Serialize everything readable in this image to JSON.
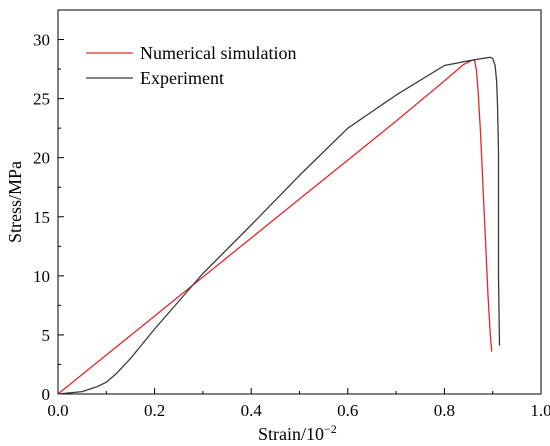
{
  "chart_data": {
    "type": "line",
    "title": "",
    "xlabel": "Strain/10",
    "xlabel_superscript": "−2",
    "ylabel": "Stress/MPa",
    "xlim": [
      0,
      1.0
    ],
    "ylim": [
      0,
      32.5
    ],
    "x_ticks": [
      0.0,
      0.2,
      0.4,
      0.6,
      0.8,
      1.0
    ],
    "x_tick_labels": [
      "0.0",
      "0.2",
      "0.4",
      "0.6",
      "0.8",
      "1.0"
    ],
    "y_ticks": [
      0,
      5,
      10,
      15,
      20,
      25,
      30
    ],
    "y_tick_labels": [
      "0",
      "5",
      "10",
      "15",
      "20",
      "25",
      "30"
    ],
    "grid": false,
    "legend_position": "top-left",
    "series": [
      {
        "name": "Numerical simulation",
        "color": "#e8262a",
        "x": [
          0.0,
          0.1,
          0.2,
          0.3,
          0.4,
          0.5,
          0.6,
          0.7,
          0.8,
          0.84,
          0.855,
          0.862,
          0.866,
          0.87,
          0.875,
          0.88,
          0.885,
          0.89,
          0.895,
          0.898
        ],
        "y": [
          0.0,
          3.3,
          6.6,
          9.9,
          13.2,
          16.5,
          19.8,
          23.1,
          26.5,
          27.9,
          28.2,
          28.3,
          27.5,
          25.5,
          22.0,
          17.5,
          13.0,
          8.5,
          5.0,
          3.6
        ]
      },
      {
        "name": "Experiment",
        "color": "#3a3a3a",
        "x": [
          0.0,
          0.05,
          0.08,
          0.1,
          0.12,
          0.15,
          0.2,
          0.3,
          0.4,
          0.5,
          0.6,
          0.7,
          0.8,
          0.85,
          0.88,
          0.895,
          0.9,
          0.905,
          0.908,
          0.91,
          0.912,
          0.912,
          0.914
        ],
        "y": [
          0.0,
          0.2,
          0.6,
          1.0,
          1.7,
          3.0,
          5.5,
          10.2,
          14.3,
          18.5,
          22.5,
          25.3,
          27.8,
          28.2,
          28.4,
          28.5,
          28.4,
          27.8,
          26.5,
          24.5,
          20.5,
          10.0,
          4.1
        ]
      }
    ]
  }
}
